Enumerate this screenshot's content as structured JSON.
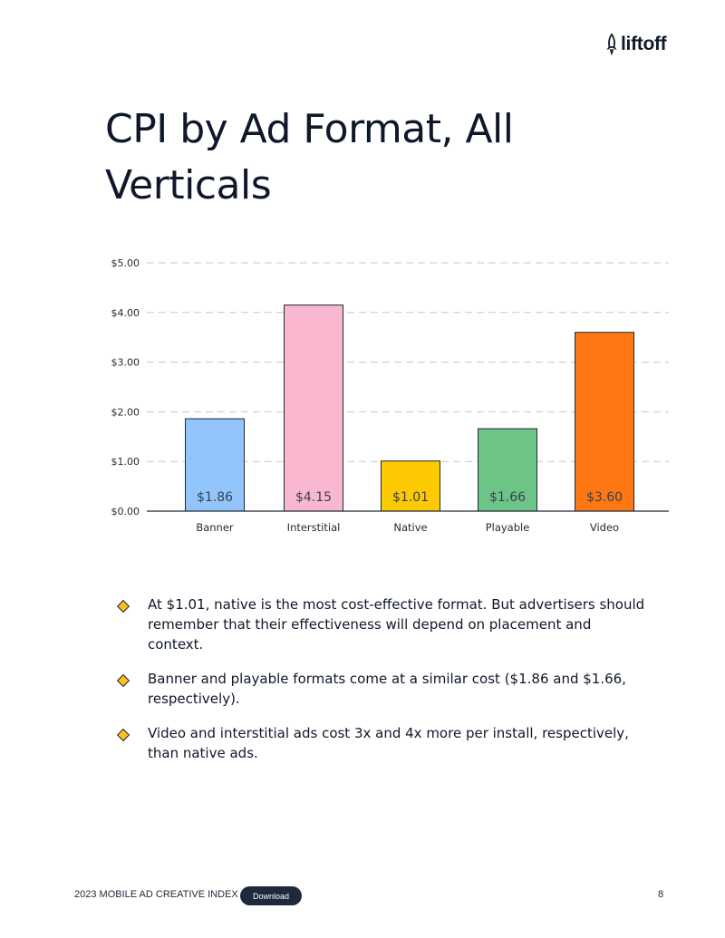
{
  "logo": {
    "text": "liftoff"
  },
  "title": "CPI by Ad Format, All Verticals",
  "chart_data": {
    "type": "bar",
    "categories": [
      "Banner",
      "Interstitial",
      "Native",
      "Playable",
      "Video"
    ],
    "values": [
      1.86,
      4.15,
      1.01,
      1.66,
      3.6
    ],
    "value_labels": [
      "$1.86",
      "$4.15",
      "$1.01",
      "$1.66",
      "$3.60"
    ],
    "colors": [
      "#93c5fd",
      "#f9b8d0",
      "#fdc900",
      "#6cc486",
      "#ff7712"
    ],
    "ylim": [
      0,
      5
    ],
    "y_ticks": [
      0,
      1,
      2,
      3,
      4,
      5
    ],
    "y_tick_labels": [
      "$0.00",
      "$1.00",
      "$2.00",
      "$3.00",
      "$4.00",
      "$5.00"
    ],
    "grid": "dashed horizontal",
    "title": "",
    "xlabel": "",
    "ylabel": ""
  },
  "bullets": [
    "At $1.01, native is the most cost-effective format. But advertisers should remember that their effectiveness will depend on placement and context.",
    "Banner and playable formats come at a similar cost ($1.86 and $1.66, respectively).",
    "Video and interstitial ads cost 3x and 4x more per install, respectively, than native ads."
  ],
  "footer": {
    "left": "2023 MOBILE AD CREATIVE INDEX",
    "download_label": "Download",
    "page": "8"
  }
}
